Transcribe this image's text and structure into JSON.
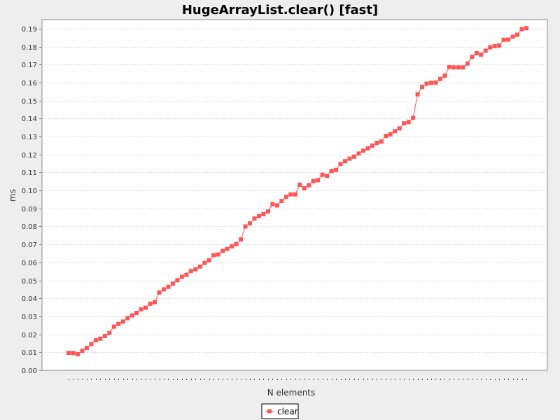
{
  "chart_data": {
    "type": "line",
    "title": "HugeArrayList.clear() [fast]",
    "xlabel": "N elements",
    "ylabel": "ms",
    "ylim": [
      0,
      0.195
    ],
    "y_ticks": [
      "0.00",
      "0.01",
      "0.02",
      "0.03",
      "0.04",
      "0.05",
      "0.06",
      "0.07",
      "0.08",
      "0.09",
      "0.10",
      "0.11",
      "0.12",
      "0.13",
      "0.14",
      "0.15",
      "0.16",
      "0.17",
      "0.18",
      "0.19"
    ],
    "grid": true,
    "legend_position": "bottom-center",
    "colors": {
      "series": "#ff5555",
      "plot_background": "#ffffff",
      "page_background": "#eeeeee",
      "gridline": "#dddddd"
    },
    "series": [
      {
        "name": "clear",
        "marker": "square",
        "values": [
          0.0097,
          0.0096,
          0.009,
          0.0108,
          0.0124,
          0.0146,
          0.0167,
          0.0176,
          0.0191,
          0.0208,
          0.0243,
          0.0258,
          0.0271,
          0.029,
          0.0305,
          0.0319,
          0.0339,
          0.0348,
          0.037,
          0.0379,
          0.0433,
          0.045,
          0.0464,
          0.0482,
          0.0501,
          0.052,
          0.0531,
          0.0552,
          0.0562,
          0.0577,
          0.0597,
          0.0612,
          0.064,
          0.0644,
          0.0664,
          0.0675,
          0.069,
          0.0702,
          0.0728,
          0.08,
          0.0817,
          0.0844,
          0.0858,
          0.0868,
          0.0883,
          0.0924,
          0.0917,
          0.0942,
          0.0964,
          0.0978,
          0.0978,
          0.1032,
          0.1012,
          0.1029,
          0.1052,
          0.1057,
          0.1087,
          0.1081,
          0.1108,
          0.1114,
          0.1147,
          0.1163,
          0.1177,
          0.1188,
          0.1205,
          0.1221,
          0.1234,
          0.1249,
          0.1264,
          0.1272,
          0.1303,
          0.1312,
          0.133,
          0.1345,
          0.1373,
          0.138,
          0.1404,
          0.1535,
          0.1576,
          0.1594,
          0.1598,
          0.16,
          0.162,
          0.1638,
          0.1686,
          0.1684,
          0.1684,
          0.1684,
          0.1706,
          0.1743,
          0.1763,
          0.1755,
          0.1777,
          0.1796,
          0.1802,
          0.1806,
          0.1838,
          0.1839,
          0.1855,
          0.1866,
          0.1897,
          0.1902
        ]
      }
    ]
  }
}
